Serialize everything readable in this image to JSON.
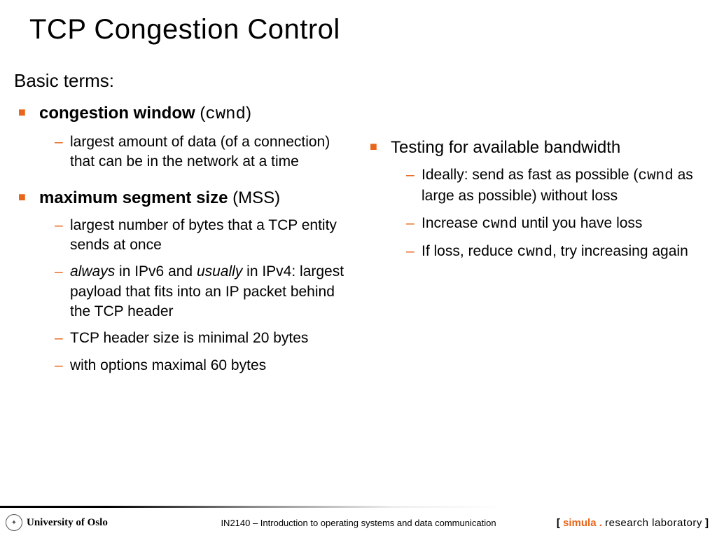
{
  "title": "TCP Congestion Control",
  "colors": {
    "accent": "#e8651a",
    "text": "#000000",
    "bg": "#ffffff"
  },
  "left": {
    "intro": "Basic terms:",
    "items": [
      {
        "boldlabel": "congestion window",
        "mono": "cwnd",
        "sub": [
          {
            "text": "largest amount of data (of a connection) that can be in the network at a time"
          }
        ]
      },
      {
        "boldlabel": "maximum segment size",
        "plain": " (MSS)",
        "sub": [
          {
            "text": "largest number of bytes that a TCP entity sends at once"
          },
          {
            "html_parts": {
              "i1": "always",
              "mid1": " in IPv6 and ",
              "i2": "usually",
              "mid2": " in IPv4: largest payload that fits into an IP packet behind the TCP header"
            }
          },
          {
            "text": "TCP header size is minimal 20  bytes"
          },
          {
            "text": "with options maximal 60 bytes"
          }
        ]
      }
    ]
  },
  "right": {
    "items": [
      {
        "label": "Testing for available bandwidth",
        "sub": [
          {
            "parts": {
              "a": "Ideally: send as fast as possible (",
              "m": "cwnd",
              "b": " as large as possible) without loss"
            }
          },
          {
            "parts": {
              "a": "Increase ",
              "m": "cwnd",
              "b": " until you have loss"
            }
          },
          {
            "parts": {
              "a": "If loss, reduce ",
              "m": "cwnd",
              "b": ", try increasing again"
            }
          }
        ]
      }
    ]
  },
  "footer": {
    "university": "University of Oslo",
    "course": "IN2140 – Introduction to operating systems and data communication",
    "simula_open": "[ ",
    "simula_brand": "simula",
    "simula_dot": " . ",
    "simula_lab": "research laboratory",
    "simula_close": " ]"
  }
}
